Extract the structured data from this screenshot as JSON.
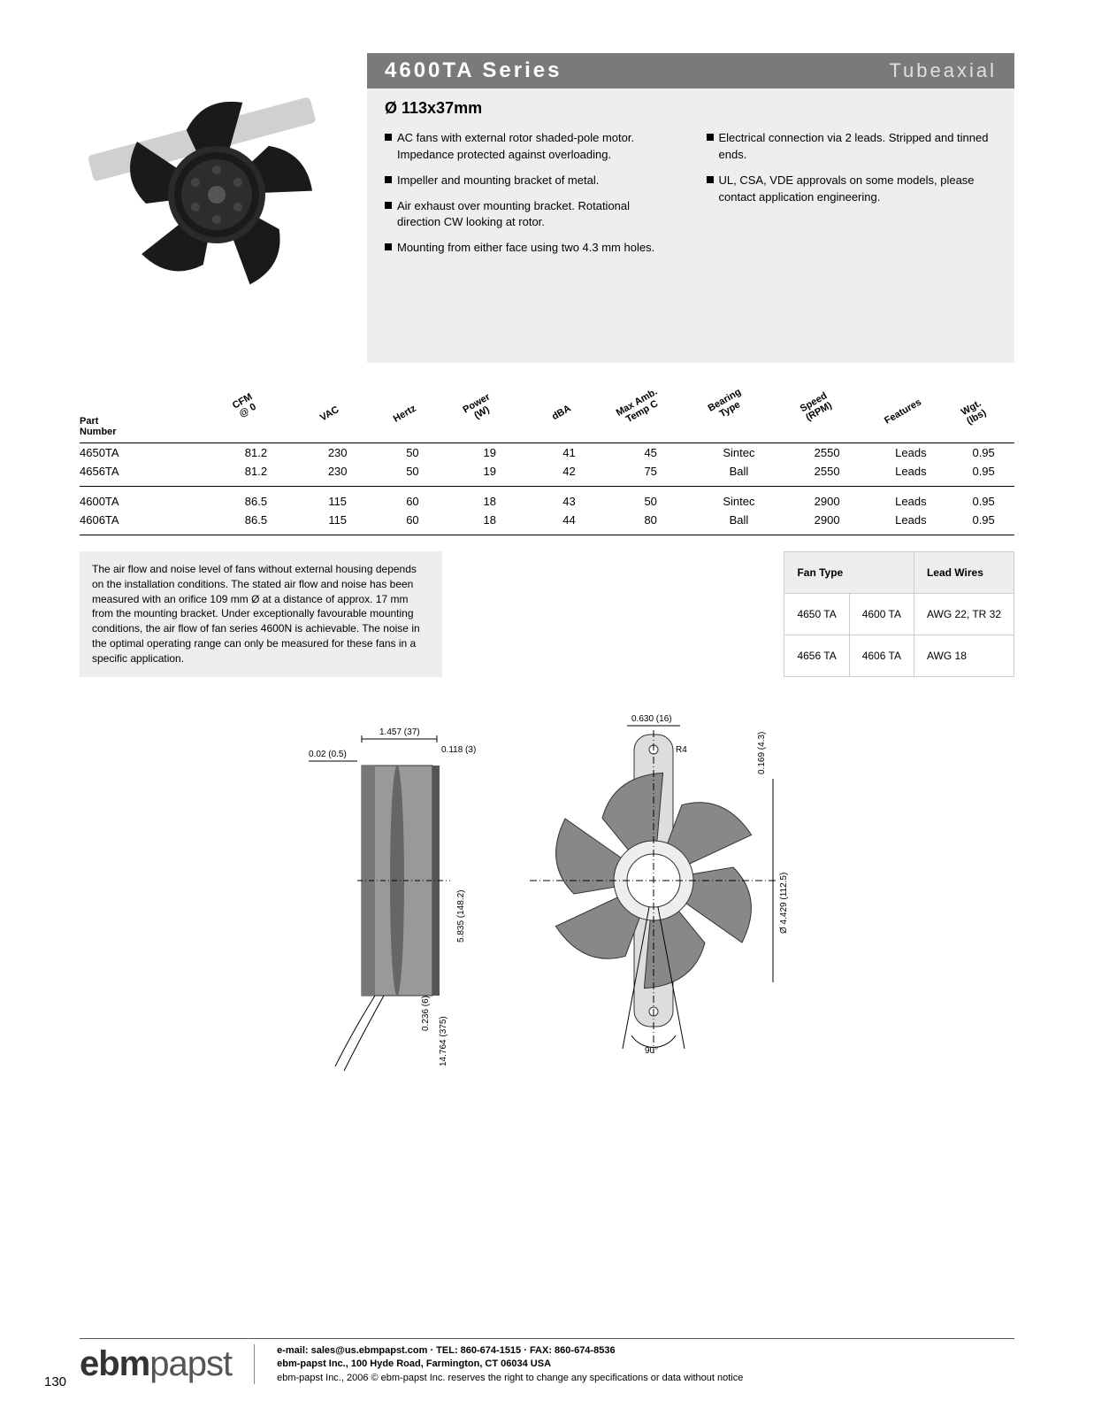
{
  "header": {
    "title": "4600TA Series",
    "subtitle": "Tubeaxial",
    "dimension": "Ø 113x37mm"
  },
  "bullets_left": [
    "AC fans with external rotor shaded-pole motor.  Impedance protected against overloading.",
    "Impeller and mounting bracket of metal.",
    "Air exhaust over mounting bracket. Rotational direction CW looking at rotor.",
    "Mounting from either face using two 4.3 mm holes."
  ],
  "bullets_right": [
    "Electrical connection via 2 leads.  Stripped and tinned ends.",
    "UL, CSA, VDE approvals on some models, please contact application engineering."
  ],
  "spec_headers": {
    "part": "Part\nNumber",
    "cfm": "CFM\n@ 0",
    "vac": "VAC",
    "hz": "Hertz",
    "pw": "Power\n(W)",
    "dba": "dBA",
    "temp": "Max Amb.\nTemp C",
    "bear": "Bearing\nType",
    "rpm": "Speed\n(RPM)",
    "feat": "Features",
    "wgt": "Wgt.\n(lbs)"
  },
  "spec_rows_g1": [
    {
      "part": "4650TA",
      "cfm": "81.2",
      "vac": "230",
      "hz": "50",
      "pw": "19",
      "dba": "41",
      "temp": "45",
      "bear": "Sintec",
      "rpm": "2550",
      "feat": "Leads",
      "wgt": "0.95"
    },
    {
      "part": "4656TA",
      "cfm": "81.2",
      "vac": "230",
      "hz": "50",
      "pw": "19",
      "dba": "42",
      "temp": "75",
      "bear": "Ball",
      "rpm": "2550",
      "feat": "Leads",
      "wgt": "0.95"
    }
  ],
  "spec_rows_g2": [
    {
      "part": "4600TA",
      "cfm": "86.5",
      "vac": "115",
      "hz": "60",
      "pw": "18",
      "dba": "43",
      "temp": "50",
      "bear": "Sintec",
      "rpm": "2900",
      "feat": "Leads",
      "wgt": "0.95"
    },
    {
      "part": "4606TA",
      "cfm": "86.5",
      "vac": "115",
      "hz": "60",
      "pw": "18",
      "dba": "44",
      "temp": "80",
      "bear": "Ball",
      "rpm": "2900",
      "feat": "Leads",
      "wgt": "0.95"
    }
  ],
  "note_text": "The air flow and noise level of fans without external housing depends on the installation conditions. The stated air flow and noise has been measured with an orifice 109 mm Ø at a distance of approx. 17 mm from the mounting bracket. Under exceptionally favourable mounting conditions, the air flow of fan series 4600N is achievable. The noise in the optimal operating range can only be measured for these fans in a specific application.",
  "wire_table": {
    "h1": "Fan Type",
    "h2": "Lead Wires",
    "rows": [
      {
        "a": "4650 TA",
        "b": "4600 TA",
        "c": "AWG 22, TR 32"
      },
      {
        "a": "4656 TA",
        "b": "4606 TA",
        "c": "AWG 18"
      }
    ]
  },
  "diagram": {
    "d1": "1.457 (37)",
    "d2": "0.118\n(3)",
    "d3": "0.02 (0.5)",
    "d4": "0.630 (16)",
    "d5": "R4",
    "d6": "0.169 (4.3)",
    "d7": "5.835 (148.2)",
    "d8": "0.236 (6)",
    "d9": "14.764 (375)",
    "d10": "Ø  4.429 (112.5)",
    "d11": "90°"
  },
  "footer": {
    "logo_a": "ebm",
    "logo_b": "papst",
    "line1": "e-mail: sales@us.ebmpapst.com · TEL: 860-674-1515 · FAX: 860-674-8536",
    "line2": "ebm-papst Inc., 100 Hyde Road, Farmington, CT 06034 USA",
    "line3": "ebm-papst Inc., 2006 © ebm-papst Inc. reserves the right to change any specifications or data without notice",
    "page": "130"
  }
}
